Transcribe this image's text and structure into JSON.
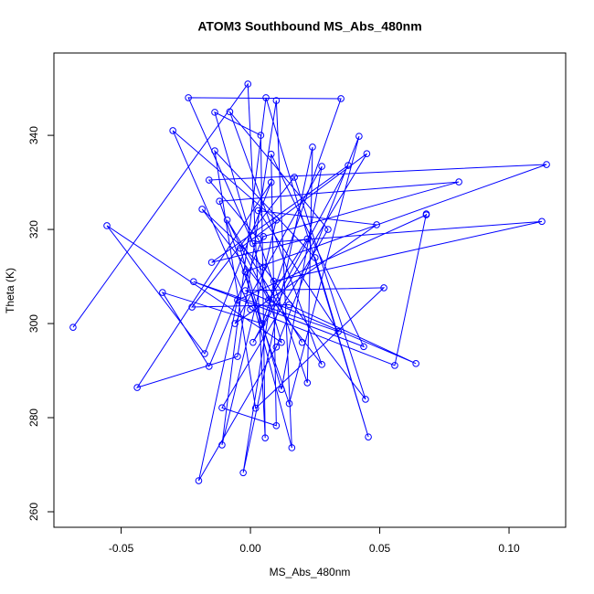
{
  "chart_data": {
    "type": "line",
    "title": "ATOM3 Southbound MS_Abs_480nm",
    "xlabel": "MS_Abs_480nm",
    "ylabel": "Theta (K)",
    "color": "#0000ff",
    "markers": true,
    "xlim": [
      -0.076,
      0.1219
    ],
    "ylim": [
      256.7,
      357.5
    ],
    "xticks": [
      {
        "value": -0.05,
        "label": "-0.05"
      },
      {
        "value": 0,
        "label": "0.00"
      },
      {
        "value": 0.05,
        "label": "0.05"
      },
      {
        "value": 0.1,
        "label": "0.10"
      }
    ],
    "yticks": [
      260,
      280,
      300,
      320,
      340
    ],
    "x": [
      -0.0686,
      -0.001,
      0.0057,
      0.004,
      -0.0138,
      0.012,
      -0.0555,
      -0.0177,
      0.008,
      -0.0438,
      -0.005,
      0.01,
      0.016,
      -0.002,
      0.1145,
      -0.016,
      0.003,
      0.022,
      0.024,
      -0.0028,
      0.009,
      0.1127,
      0.001,
      -0.024,
      0.035,
      0.0045,
      -0.034,
      -0.016,
      0.005,
      0.0806,
      -0.012,
      0.015,
      0.042,
      0.01,
      -0.02,
      -0.005,
      0.068,
      0.068,
      0.0558,
      0,
      -0.03,
      0.01,
      -0.011,
      0.006,
      0.0456,
      0.025,
      -0.0138,
      0.002,
      0.0516,
      -0.002,
      0.064,
      0.015,
      -0.0226,
      0.017,
      0.0445,
      0.005,
      -0.0187,
      0.0276,
      -0.008,
      0.03,
      -0.011,
      0.01,
      0.008,
      0.0438,
      -0.022,
      0.034,
      0.003,
      0.0488,
      -0.006,
      0.0276,
      0.012,
      -0.004,
      0.045,
      0.001,
      0.0378,
      -0.015,
      0.022,
      0.007,
      -0.009,
      0.02
    ],
    "values": [
      299.2,
      350.9,
      275.7,
      340.0,
      344.9,
      296.0,
      320.8,
      293.6,
      330.0,
      286.4,
      293.0,
      347.4,
      273.6,
      311.0,
      333.8,
      330.5,
      318.0,
      287.4,
      337.5,
      268.3,
      309.0,
      321.7,
      317.0,
      348.0,
      347.8,
      300.0,
      306.6,
      290.9,
      318.5,
      330.1,
      326.0,
      283.0,
      339.8,
      295.0,
      266.6,
      305.0,
      323.1,
      323.3,
      291.1,
      303.0,
      341.0,
      322.0,
      274.2,
      348.0,
      275.9,
      314.0,
      336.7,
      282.0,
      307.6,
      307.0,
      291.5,
      304.0,
      303.5,
      331.1,
      283.9,
      312.0,
      324.3,
      291.3,
      345.0,
      320.0,
      282.1,
      278.3,
      336.0,
      295.1,
      308.9,
      298.3,
      324.0,
      321.0,
      300.0,
      333.4,
      286.0,
      316.0,
      336.1,
      296.0,
      333.6,
      313.0,
      318.0,
      305.0,
      322.0,
      296.0
    ]
  }
}
